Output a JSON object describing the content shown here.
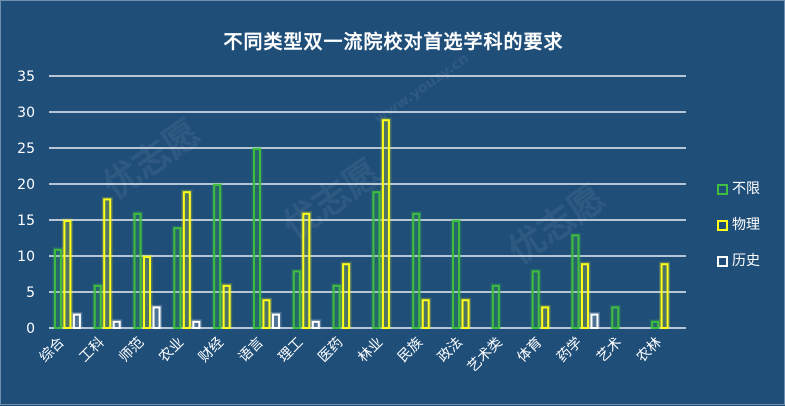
{
  "chart_data": {
    "type": "bar",
    "title": "不同类型双一流院校对首选学科的要求",
    "categories": [
      "综合",
      "工科",
      "师范",
      "农业",
      "财经",
      "语言",
      "理工",
      "医药",
      "林业",
      "民族",
      "政法",
      "艺术类",
      "体育",
      "药学",
      "艺术",
      "农林"
    ],
    "series": [
      {
        "name": "不限",
        "color": "#3fbf3f",
        "values": [
          11,
          6,
          16,
          14,
          20,
          25,
          8,
          6,
          19,
          16,
          15,
          6,
          8,
          13,
          3,
          1
        ]
      },
      {
        "name": "物理",
        "color": "#ffff1a",
        "values": [
          15,
          18,
          10,
          19,
          6,
          4,
          16,
          9,
          29,
          4,
          4,
          0,
          3,
          9,
          0,
          9
        ]
      },
      {
        "name": "历史",
        "color": "#ffffff",
        "values": [
          2,
          1,
          3,
          1,
          0,
          2,
          1,
          0,
          0,
          0,
          0,
          0,
          0,
          2,
          0,
          0
        ]
      }
    ],
    "yticks": [
      "0",
      "5",
      "10",
      "15",
      "20",
      "25",
      "30",
      "35"
    ],
    "ylim": [
      0,
      35
    ],
    "grid": true,
    "legend": "right"
  },
  "watermark": {
    "text": "优志愿",
    "url": "www.youzy.cn"
  }
}
